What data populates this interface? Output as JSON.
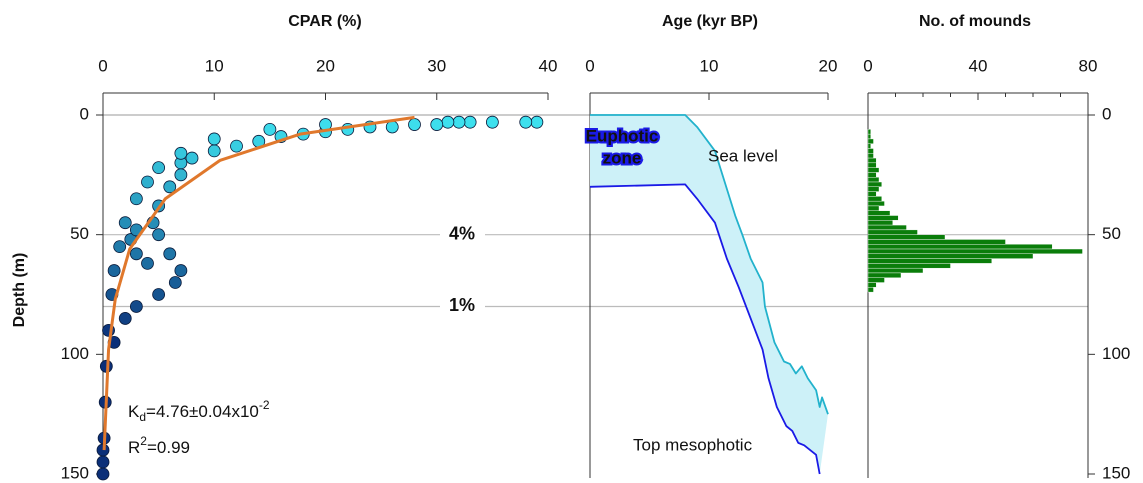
{
  "chart_data": [
    {
      "type": "scatter",
      "title": "CPAR (%)",
      "ylabel": "Depth (m)",
      "xlim": [
        0,
        40
      ],
      "xticks": [
        0,
        10,
        20,
        30,
        40
      ],
      "ylim": [
        0,
        150
      ],
      "yticks": [
        0,
        50,
        100,
        150
      ],
      "y_inverted": true,
      "series": [
        {
          "type": "scatter",
          "color_top": "#3fe6f2",
          "color_bottom": "#0b2f78",
          "x": [
            39,
            38,
            35,
            33,
            32,
            31,
            30,
            28,
            26,
            24,
            22,
            20,
            18,
            16,
            14,
            12,
            10,
            8,
            7,
            20,
            15,
            10,
            7,
            5,
            4,
            3,
            2,
            1.5,
            1,
            0.8,
            0.5,
            0.3,
            0.2,
            0.1,
            0,
            0,
            0,
            7,
            6,
            5,
            4.5,
            5,
            6,
            7,
            6.5,
            5,
            3,
            2,
            1,
            4,
            3,
            2.5,
            3
          ],
          "y": [
            3,
            3,
            3,
            3,
            3,
            3,
            4,
            4,
            5,
            5,
            6,
            7,
            8,
            9,
            11,
            13,
            15,
            18,
            20,
            4,
            6,
            10,
            16,
            22,
            28,
            35,
            45,
            55,
            65,
            75,
            90,
            105,
            120,
            135,
            150,
            145,
            140,
            25,
            30,
            38,
            45,
            50,
            58,
            65,
            70,
            75,
            80,
            85,
            95,
            62,
            58,
            52,
            48
          ]
        },
        {
          "type": "line",
          "color": "#e0782c",
          "x": [
            28,
            17.7,
            10.5,
            5.6,
            2.4,
            1.1,
            0.5,
            0.1
          ],
          "y": [
            1,
            8,
            19,
            35,
            56,
            77,
            98,
            140
          ]
        }
      ],
      "annotations": {
        "kd": [
          "K",
          "d",
          "=4.76±0.04x10",
          "-2"
        ],
        "r2": [
          "R",
          "2",
          "=0.99"
        ]
      },
      "reference_lines": [
        {
          "depth": 50,
          "label": "4%"
        },
        {
          "depth": 80,
          "label": "1%"
        }
      ]
    },
    {
      "type": "line",
      "title": "Age (kyr BP)",
      "xlim": [
        0,
        20
      ],
      "xticks": [
        0,
        10,
        20
      ],
      "ylim": [
        0,
        150
      ],
      "y_inverted": true,
      "fill": "#cdf1f8",
      "annotation": [
        "Euphotic",
        "zone"
      ],
      "series": [
        {
          "name": "Sea level",
          "color": "#22b2cc",
          "x": [
            0,
            8,
            9,
            10.5,
            12.2,
            12.8,
            13.5,
            14.5,
            14.7,
            15.5,
            16,
            16.3,
            16.8,
            17.3,
            17.8,
            18.3,
            19,
            19.3,
            19.5,
            20
          ],
          "y": [
            0,
            0,
            5,
            15,
            42,
            50,
            60,
            70,
            80,
            95,
            100,
            103,
            104,
            108,
            105,
            110,
            115,
            122,
            118,
            125
          ]
        },
        {
          "name": "Top mesophotic",
          "color": "#1a1ae6",
          "x": [
            0,
            8,
            9,
            10.5,
            11.5,
            12.5,
            13.5,
            14.5,
            15,
            15.7,
            16.5,
            17,
            17.5,
            18,
            19,
            19.3
          ],
          "y": [
            30,
            29,
            35,
            45,
            60,
            72,
            85,
            98,
            110,
            122,
            130,
            132,
            137,
            138,
            142,
            150
          ]
        }
      ]
    },
    {
      "type": "histogram",
      "orientation": "horizontal",
      "title": "No. of mounds",
      "xlim": [
        0,
        80
      ],
      "xticks": [
        0,
        40,
        80
      ],
      "xminor": [
        10,
        20,
        30,
        50,
        60,
        70
      ],
      "ylim": [
        0,
        150
      ],
      "yticks": [
        0,
        50,
        100,
        150
      ],
      "y_inverted": true,
      "color": "#0a7d0a",
      "bins": [
        6,
        8,
        10,
        12,
        14,
        16,
        18,
        20,
        22,
        24,
        26,
        28,
        30,
        32,
        34,
        36,
        38,
        40,
        42,
        44,
        46,
        48,
        50,
        52,
        54,
        56,
        58,
        60,
        62,
        64,
        66,
        68,
        70,
        72,
        74
      ],
      "values": [
        1,
        1,
        2,
        1,
        2,
        2,
        3,
        3,
        4,
        3,
        4,
        5,
        4,
        3,
        5,
        6,
        4,
        8,
        11,
        9,
        14,
        18,
        28,
        50,
        67,
        78,
        60,
        45,
        30,
        20,
        12,
        6,
        3,
        2
      ]
    }
  ]
}
